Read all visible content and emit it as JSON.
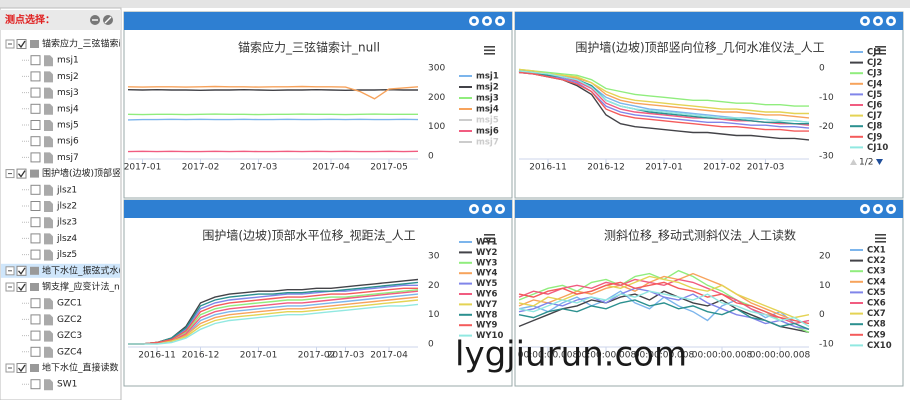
{
  "sidebar": {
    "title": "测点选择：",
    "tree": [
      {
        "label": "锚索应力_三弦锚索i",
        "children": [
          "msj1",
          "msj2",
          "msj3",
          "msj4",
          "msj5",
          "msj6",
          "msj7"
        ]
      },
      {
        "label": "围护墙(边坡)顶部竖[",
        "children": [
          "jlsz1",
          "jlsz2",
          "jlsz3",
          "jlsz4",
          "jlsz5"
        ]
      },
      {
        "label": "地下水位_振弦式水(",
        "children": []
      },
      {
        "label": "钢支撑_应变计法_nu",
        "children": [
          "GZC1",
          "GZC2",
          "GZC3",
          "GZC4"
        ]
      },
      {
        "label": "地下水位_直接读数",
        "children": [
          "SW1"
        ]
      }
    ]
  },
  "watermark": "lygjiurun.com",
  "chart_data": [
    {
      "type": "line",
      "title": "锚索应力_三弦锚索计_null",
      "categories": [
        null,
        "2017-01",
        null,
        null,
        null,
        "2017-02",
        null,
        null,
        null,
        "2017-03",
        null,
        null,
        null,
        null,
        "2017-04",
        null,
        null,
        null,
        "2017-05",
        null,
        null
      ],
      "ylim": [
        0,
        300
      ],
      "yticks": [
        0,
        100,
        200,
        300
      ],
      "grid": false,
      "series": [
        {
          "name": "msj1",
          "color": "#7cb5ec",
          "values": [
            123,
            124,
            124,
            125,
            124,
            125,
            124,
            124,
            125,
            124,
            124,
            125,
            124,
            124,
            125,
            124,
            125,
            124,
            124,
            125,
            124
          ]
        },
        {
          "name": "msj2",
          "color": "#434348",
          "values": [
            226,
            225,
            226,
            225,
            225,
            224,
            225,
            225,
            226,
            225,
            224,
            225,
            225,
            226,
            225,
            224,
            225,
            225,
            226,
            225,
            225
          ]
        },
        {
          "name": "msj3",
          "color": "#90ed7d",
          "values": [
            142,
            141,
            142,
            142,
            141,
            142,
            143,
            142,
            142,
            141,
            142,
            142,
            143,
            142,
            142,
            141,
            142,
            143,
            142,
            142,
            142
          ]
        },
        {
          "name": "msj4",
          "color": "#f7a35c",
          "values": [
            236,
            235,
            236,
            236,
            235,
            236,
            237,
            236,
            236,
            235,
            236,
            236,
            237,
            236,
            236,
            235,
            220,
            195,
            228,
            232,
            236
          ]
        },
        {
          "name": "msj5",
          "color": "#cccccc",
          "hidden": true
        },
        {
          "name": "msj6",
          "color": "#f15c80",
          "values": [
            15,
            16,
            15,
            16,
            15,
            15,
            16,
            15,
            16,
            15,
            15,
            16,
            15,
            16,
            15,
            16,
            15,
            15,
            16,
            15,
            16
          ]
        },
        {
          "name": "msj7",
          "color": "#cccccc",
          "hidden": true
        }
      ]
    },
    {
      "type": "line",
      "title": "围护墙(边坡)顶部竖向位移_几何水准仪法_人工",
      "categories": [
        null,
        null,
        "2016-11",
        null,
        null,
        null,
        "2016-12",
        null,
        null,
        null,
        "2017-01",
        null,
        null,
        null,
        "2017-02",
        null,
        null,
        "2017-03",
        null,
        null,
        null
      ],
      "ylim": [
        -30,
        0
      ],
      "yticks": [
        -30,
        -20,
        -10,
        0
      ],
      "grid": false,
      "legend_pager": "1/2",
      "series": [
        {
          "name": "CJ1",
          "color": "#7cb5ec",
          "values": [
            -1,
            -1.5,
            -2,
            -3,
            -4,
            -6,
            -10,
            -12,
            -13,
            -14,
            -14.5,
            -15,
            -15.5,
            -16,
            -16.5,
            -17,
            -17,
            -17.5,
            -18,
            -18,
            -18.5
          ]
        },
        {
          "name": "CJ2",
          "color": "#434348",
          "values": [
            -1.5,
            -2,
            -3,
            -4,
            -6,
            -9,
            -16,
            -19,
            -20,
            -20.5,
            -21,
            -21.5,
            -22,
            -22,
            -22.5,
            -23,
            -23,
            -23.5,
            -24,
            -24,
            -24.5
          ]
        },
        {
          "name": "CJ3",
          "color": "#90ed7d",
          "values": [
            -0.5,
            -1,
            -1.5,
            -2,
            -2.5,
            -4,
            -7,
            -8,
            -9,
            -9.5,
            -10,
            -10.5,
            -11,
            -11,
            -11.5,
            -12,
            -12,
            -12.5,
            -12.5,
            -13,
            -13
          ]
        },
        {
          "name": "CJ4",
          "color": "#f7a35c",
          "values": [
            -1,
            -1.5,
            -2,
            -2.5,
            -3.5,
            -5,
            -9,
            -11,
            -12,
            -12.5,
            -13,
            -13.5,
            -14,
            -14.5,
            -15,
            -15,
            -15.5,
            -16,
            -16,
            -16.5,
            -17
          ]
        },
        {
          "name": "CJ5",
          "color": "#8085e9",
          "values": [
            -1.5,
            -2,
            -2.5,
            -3.5,
            -5,
            -8,
            -13,
            -15,
            -16,
            -16.5,
            -17,
            -17.5,
            -18,
            -18.5,
            -18.5,
            -19,
            -19.5,
            -19.5,
            -20,
            -20,
            -20.5
          ]
        },
        {
          "name": "CJ6",
          "color": "#f15c80",
          "values": [
            -1,
            -2,
            -2.5,
            -3,
            -4.5,
            -7,
            -12,
            -14,
            -15,
            -15.5,
            -16,
            -16.5,
            -17,
            -17,
            -17.5,
            -18,
            -18,
            -18.5,
            -19,
            -19,
            -19.5
          ]
        },
        {
          "name": "CJ7",
          "color": "#e4d354",
          "values": [
            -0.5,
            -1,
            -2,
            -2.5,
            -3,
            -5,
            -8,
            -10,
            -11,
            -11.5,
            -12,
            -12.5,
            -13,
            -13.5,
            -14,
            -14,
            -14.5,
            -15,
            -15,
            -15.5,
            -15.5
          ]
        },
        {
          "name": "CJ8",
          "color": "#2b908f",
          "values": [
            -1,
            -1.5,
            -2.5,
            -3,
            -4,
            -6,
            -11,
            -13,
            -14,
            -15,
            -15.5,
            -16,
            -16.5,
            -17,
            -17,
            -17.5,
            -18,
            -18.5,
            -18.5,
            -19,
            -19
          ]
        },
        {
          "name": "CJ9",
          "color": "#f45b5b",
          "values": [
            -1.5,
            -2,
            -3,
            -4,
            -5.5,
            -8,
            -14,
            -16,
            -17,
            -17.5,
            -18,
            -18.5,
            -19,
            -19.5,
            -20,
            -20,
            -20.5,
            -21,
            -21,
            -21.5,
            -21.5
          ]
        },
        {
          "name": "CJ10",
          "color": "#91e8e1",
          "values": [
            -1,
            -1.5,
            -2,
            -3,
            -4,
            -6.5,
            -11,
            -13,
            -14,
            -14.5,
            -15,
            -15.5,
            -16,
            -16.5,
            -17,
            -17,
            -17.5,
            -17.5,
            -18,
            -18,
            -18.5
          ]
        }
      ]
    },
    {
      "type": "line",
      "title": "围护墙(边坡)顶部水平位移_视距法_人工",
      "categories": [
        null,
        null,
        "2016-11",
        null,
        null,
        "2016-12",
        null,
        null,
        null,
        "2017-01",
        null,
        null,
        null,
        "2017-02",
        null,
        "2017-03",
        null,
        null,
        "2017-04",
        null,
        null
      ],
      "ylim": [
        0,
        30
      ],
      "yticks": [
        0,
        10,
        20,
        30
      ],
      "grid": false,
      "series": [
        {
          "name": "WY1",
          "color": "#7cb5ec",
          "values": [
            0,
            0,
            0.5,
            1,
            3,
            8,
            10,
            11,
            11.5,
            12,
            12.5,
            13,
            13,
            13.5,
            14,
            14.5,
            15,
            15.5,
            16,
            16.5,
            17
          ]
        },
        {
          "name": "WY2",
          "color": "#434348",
          "values": [
            0,
            0,
            0.5,
            2,
            6,
            14,
            16,
            17,
            17.5,
            18,
            18,
            18.5,
            18.5,
            19,
            19,
            19.5,
            20,
            20.5,
            21,
            21.5,
            22
          ]
        },
        {
          "name": "WY3",
          "color": "#90ed7d",
          "values": [
            0,
            0,
            0.5,
            1.5,
            4,
            10,
            12,
            13,
            13.5,
            14,
            14.5,
            15,
            15,
            15.5,
            16,
            16,
            16.5,
            17,
            17.5,
            18,
            18.5
          ]
        },
        {
          "name": "WY4",
          "color": "#f7a35c",
          "values": [
            0,
            0,
            0.5,
            1,
            3,
            7,
            9,
            10,
            10.5,
            11,
            11.5,
            12,
            12,
            12.5,
            13,
            13.5,
            14,
            14.5,
            15,
            15.5,
            16
          ]
        },
        {
          "name": "WY5",
          "color": "#8085e9",
          "values": [
            0,
            0,
            0.5,
            1.5,
            5,
            12,
            14,
            15,
            15.5,
            16,
            16.5,
            17,
            17,
            17.5,
            18,
            18,
            18.5,
            19,
            19.5,
            20,
            20
          ]
        },
        {
          "name": "WY6",
          "color": "#f15c80",
          "values": [
            0,
            0,
            0.5,
            1,
            3.5,
            9,
            11,
            12,
            12.5,
            13,
            13.5,
            14,
            14,
            14.5,
            15,
            15.5,
            16,
            16.5,
            17,
            17.5,
            18
          ]
        },
        {
          "name": "WY7",
          "color": "#e4d354",
          "values": [
            0,
            0,
            0.5,
            1,
            2.5,
            6,
            8,
            9,
            9.5,
            10,
            10.5,
            11,
            11,
            11.5,
            12,
            12.5,
            13,
            13.5,
            14,
            14.5,
            15
          ]
        },
        {
          "name": "WY8",
          "color": "#2b908f",
          "values": [
            0,
            0,
            0.5,
            2,
            5.5,
            13,
            15,
            16,
            16.5,
            17,
            17,
            17.5,
            17.5,
            18,
            18,
            18.5,
            19,
            19.5,
            20,
            20.5,
            21
          ]
        },
        {
          "name": "WY9",
          "color": "#f45b5b",
          "values": [
            0,
            0,
            0.5,
            1.5,
            4.5,
            11,
            13,
            14,
            14.5,
            15,
            15.5,
            16,
            16,
            16.5,
            17,
            17,
            17.5,
            18,
            18.5,
            19,
            19
          ]
        },
        {
          "name": "WY10",
          "color": "#91e8e1",
          "values": [
            0,
            0,
            0,
            0.5,
            2,
            5,
            7,
            8,
            8.5,
            9,
            9.5,
            10,
            10,
            10.5,
            11,
            11.5,
            12,
            12.5,
            13,
            13,
            13.5
          ]
        }
      ]
    },
    {
      "type": "line",
      "title": "测斜位移_移动式测斜仪法_人工读数",
      "categories": [
        null,
        null,
        "00:00:00.008",
        null,
        null,
        null,
        "00:00:00.008",
        null,
        null,
        null,
        "00:00:00.008",
        null,
        null,
        null,
        "00:00:00.008",
        null,
        null,
        null,
        "00:00:00.008",
        null,
        null
      ],
      "ylim": [
        -10,
        20
      ],
      "yticks": [
        -10,
        0,
        10,
        20
      ],
      "grid": false,
      "series": [
        {
          "name": "CX1",
          "color": "#7cb5ec",
          "values": [
            2,
            3,
            1,
            4,
            6,
            3,
            5,
            8,
            4,
            2,
            6,
            3,
            1,
            -2,
            3,
            5,
            2,
            -1,
            1,
            -3,
            -2
          ]
        },
        {
          "name": "CX2",
          "color": "#434348",
          "values": [
            -4,
            -2,
            0,
            2,
            3,
            5,
            4,
            6,
            7,
            5,
            8,
            6,
            4,
            3,
            5,
            2,
            0,
            -2,
            -4,
            -5,
            -6
          ]
        },
        {
          "name": "CX3",
          "color": "#90ed7d",
          "values": [
            5,
            7,
            9,
            10,
            8,
            11,
            12,
            10,
            13,
            14,
            12,
            15,
            13,
            10,
            8,
            5,
            3,
            1,
            -2,
            -4,
            -6
          ]
        },
        {
          "name": "CX4",
          "color": "#f7a35c",
          "values": [
            3,
            5,
            4,
            6,
            8,
            7,
            9,
            10,
            8,
            11,
            13,
            12,
            14,
            12,
            10,
            7,
            4,
            2,
            0,
            -2,
            -3
          ]
        },
        {
          "name": "CX5",
          "color": "#8085e9",
          "values": [
            1,
            2,
            4,
            3,
            5,
            6,
            4,
            7,
            9,
            8,
            6,
            5,
            7,
            4,
            2,
            0,
            -1,
            -3,
            -2,
            -4,
            -5
          ]
        },
        {
          "name": "CX6",
          "color": "#f15c80",
          "values": [
            6,
            8,
            7,
            9,
            10,
            9,
            11,
            10,
            12,
            11,
            10,
            12,
            11,
            9,
            7,
            5,
            2,
            0,
            -1,
            -3,
            -2
          ]
        },
        {
          "name": "CX7",
          "color": "#e4d354",
          "values": [
            4,
            3,
            6,
            5,
            7,
            8,
            10,
            9,
            11,
            13,
            12,
            11,
            9,
            8,
            10,
            7,
            5,
            3,
            1,
            -1,
            0
          ]
        },
        {
          "name": "CX8",
          "color": "#2b908f",
          "values": [
            0,
            -1,
            1,
            2,
            1,
            3,
            2,
            4,
            5,
            3,
            4,
            2,
            3,
            1,
            0,
            2,
            -1,
            -2,
            -4,
            -3,
            -5
          ]
        },
        {
          "name": "CX9",
          "color": "#f45b5b",
          "values": [
            7,
            6,
            8,
            9,
            7,
            8,
            10,
            11,
            9,
            10,
            11,
            9,
            8,
            6,
            7,
            4,
            3,
            1,
            -1,
            -2,
            -3
          ]
        },
        {
          "name": "CX10",
          "color": "#91e8e1",
          "values": [
            2,
            1,
            3,
            5,
            4,
            6,
            5,
            7,
            6,
            8,
            7,
            6,
            5,
            7,
            4,
            3,
            1,
            0,
            -2,
            -1,
            -4
          ]
        }
      ]
    }
  ]
}
